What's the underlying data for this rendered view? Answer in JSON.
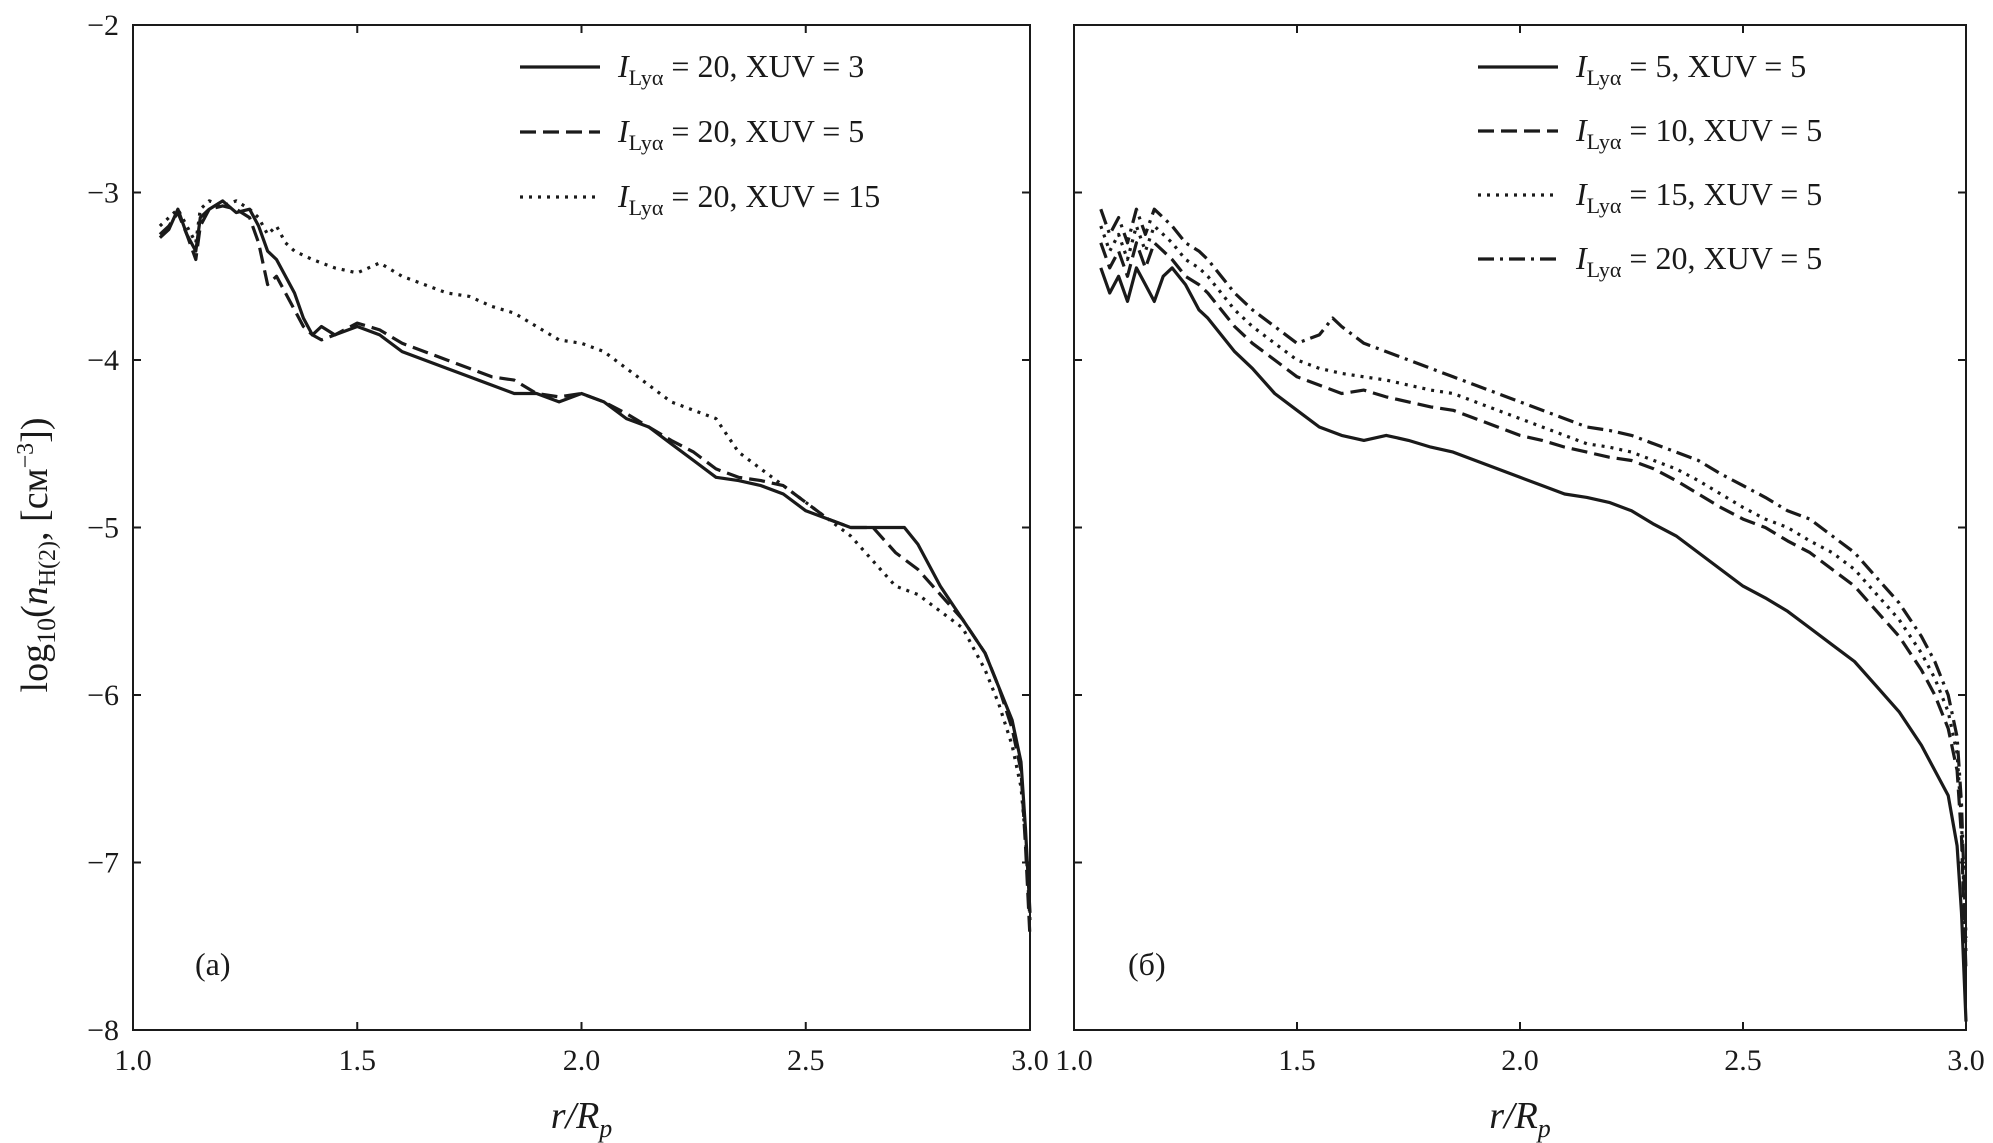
{
  "chart_data": [
    {
      "type": "line",
      "panel_label": "(a)",
      "xlabel": "r/R",
      "xlabel_sub": "p",
      "ylabel": "log",
      "ylabel_parts": {
        "base": "10",
        "open": "(",
        "var": "n",
        "var_sub": "H(2)",
        "unit_open": ", [см",
        "unit_sup": "−3",
        "unit_close": "])"
      },
      "xlim": [
        1.0,
        3.0
      ],
      "ylim": [
        -8,
        -2
      ],
      "xticks": [
        "1.0",
        "1.5",
        "2.0",
        "2.5",
        "3.0"
      ],
      "yticks": [
        "−2",
        "−3",
        "−4",
        "−5",
        "−6",
        "−7",
        "−8"
      ],
      "legend_position": "top-right",
      "series": [
        {
          "name": "I_Lyα = 20, XUV = 3",
          "legend": {
            "sym": "I",
            "sub": "Lyα",
            "rest": " = 20, XUV = 3"
          },
          "style": "solid",
          "x": [
            1.06,
            1.08,
            1.1,
            1.12,
            1.14,
            1.15,
            1.17,
            1.2,
            1.23,
            1.26,
            1.28,
            1.3,
            1.32,
            1.34,
            1.36,
            1.38,
            1.4,
            1.42,
            1.45,
            1.5,
            1.55,
            1.6,
            1.65,
            1.7,
            1.75,
            1.8,
            1.85,
            1.9,
            1.95,
            2.0,
            2.05,
            2.1,
            2.15,
            2.2,
            2.25,
            2.3,
            2.35,
            2.4,
            2.45,
            2.5,
            2.55,
            2.6,
            2.65,
            2.68,
            2.72,
            2.75,
            2.8,
            2.85,
            2.9,
            2.93,
            2.96,
            2.98,
            2.99,
            3.0
          ],
          "y": [
            -3.27,
            -3.22,
            -3.1,
            -3.25,
            -3.35,
            -3.15,
            -3.1,
            -3.05,
            -3.12,
            -3.1,
            -3.2,
            -3.35,
            -3.4,
            -3.5,
            -3.6,
            -3.75,
            -3.85,
            -3.8,
            -3.85,
            -3.8,
            -3.85,
            -3.95,
            -4.0,
            -4.05,
            -4.1,
            -4.15,
            -4.2,
            -4.2,
            -4.25,
            -4.2,
            -4.25,
            -4.35,
            -4.4,
            -4.5,
            -4.6,
            -4.7,
            -4.72,
            -4.75,
            -4.8,
            -4.9,
            -4.95,
            -5.0,
            -5.0,
            -5.0,
            -5.0,
            -5.1,
            -5.35,
            -5.55,
            -5.75,
            -5.95,
            -6.15,
            -6.4,
            -6.8,
            -7.3
          ]
        },
        {
          "name": "I_Lyα = 20, XUV = 5",
          "legend": {
            "sym": "I",
            "sub": "Lyα",
            "rest": " = 20, XUV = 5"
          },
          "style": "dashed",
          "x": [
            1.06,
            1.08,
            1.1,
            1.12,
            1.14,
            1.15,
            1.17,
            1.2,
            1.23,
            1.26,
            1.28,
            1.3,
            1.32,
            1.34,
            1.36,
            1.38,
            1.4,
            1.42,
            1.45,
            1.5,
            1.55,
            1.6,
            1.65,
            1.7,
            1.75,
            1.8,
            1.85,
            1.9,
            1.95,
            2.0,
            2.05,
            2.1,
            2.15,
            2.2,
            2.25,
            2.3,
            2.35,
            2.4,
            2.45,
            2.5,
            2.55,
            2.6,
            2.65,
            2.7,
            2.75,
            2.8,
            2.85,
            2.9,
            2.93,
            2.96,
            2.98,
            2.99,
            3.0
          ],
          "y": [
            -3.25,
            -3.2,
            -3.12,
            -3.25,
            -3.4,
            -3.2,
            -3.1,
            -3.08,
            -3.1,
            -3.15,
            -3.3,
            -3.55,
            -3.5,
            -3.6,
            -3.7,
            -3.8,
            -3.85,
            -3.88,
            -3.85,
            -3.78,
            -3.82,
            -3.9,
            -3.95,
            -4.0,
            -4.05,
            -4.1,
            -4.12,
            -4.2,
            -4.22,
            -4.2,
            -4.25,
            -4.32,
            -4.4,
            -4.48,
            -4.55,
            -4.65,
            -4.7,
            -4.72,
            -4.75,
            -4.85,
            -4.95,
            -5.0,
            -5.0,
            -5.15,
            -5.25,
            -5.4,
            -5.55,
            -5.75,
            -5.95,
            -6.2,
            -6.45,
            -6.9,
            -7.45
          ]
        },
        {
          "name": "I_Lyα = 20, XUV = 15",
          "legend": {
            "sym": "I",
            "sub": "Lyα",
            "rest": " = 20, XUV = 15"
          },
          "style": "dotted",
          "x": [
            1.06,
            1.08,
            1.1,
            1.12,
            1.14,
            1.15,
            1.17,
            1.2,
            1.23,
            1.26,
            1.28,
            1.3,
            1.32,
            1.34,
            1.36,
            1.4,
            1.45,
            1.5,
            1.55,
            1.6,
            1.65,
            1.7,
            1.75,
            1.8,
            1.85,
            1.9,
            1.95,
            2.0,
            2.05,
            2.1,
            2.15,
            2.2,
            2.25,
            2.3,
            2.35,
            2.4,
            2.45,
            2.5,
            2.55,
            2.6,
            2.65,
            2.7,
            2.75,
            2.8,
            2.85,
            2.9,
            2.93,
            2.96,
            2.98,
            2.99,
            3.0
          ],
          "y": [
            -3.2,
            -3.15,
            -3.1,
            -3.2,
            -3.3,
            -3.1,
            -3.05,
            -3.08,
            -3.05,
            -3.1,
            -3.15,
            -3.25,
            -3.2,
            -3.3,
            -3.35,
            -3.4,
            -3.45,
            -3.48,
            -3.42,
            -3.5,
            -3.55,
            -3.6,
            -3.62,
            -3.68,
            -3.72,
            -3.8,
            -3.88,
            -3.9,
            -3.95,
            -4.05,
            -4.15,
            -4.25,
            -4.3,
            -4.35,
            -4.55,
            -4.65,
            -4.75,
            -4.85,
            -4.95,
            -5.05,
            -5.2,
            -5.35,
            -5.4,
            -5.5,
            -5.6,
            -5.85,
            -6.05,
            -6.3,
            -6.55,
            -6.85,
            -7.35
          ]
        }
      ]
    },
    {
      "type": "line",
      "panel_label": "(б)",
      "xlabel": "r/R",
      "xlabel_sub": "p",
      "xlim": [
        1.0,
        3.0
      ],
      "ylim": [
        -8,
        -2
      ],
      "xticks": [
        "1.0",
        "1.5",
        "2.0",
        "2.5",
        "3.0"
      ],
      "legend_position": "top-right",
      "series": [
        {
          "name": "I_Lyα = 5, XUV = 5",
          "legend": {
            "sym": "I",
            "sub": "Lyα",
            "rest": " = 5, XUV = 5"
          },
          "style": "solid",
          "x": [
            1.06,
            1.08,
            1.1,
            1.12,
            1.14,
            1.16,
            1.18,
            1.2,
            1.22,
            1.25,
            1.28,
            1.3,
            1.33,
            1.36,
            1.4,
            1.45,
            1.5,
            1.55,
            1.6,
            1.65,
            1.7,
            1.75,
            1.8,
            1.85,
            1.9,
            1.95,
            2.0,
            2.05,
            2.1,
            2.15,
            2.2,
            2.25,
            2.3,
            2.35,
            2.4,
            2.45,
            2.5,
            2.55,
            2.6,
            2.65,
            2.7,
            2.75,
            2.8,
            2.85,
            2.9,
            2.93,
            2.96,
            2.98,
            2.99,
            3.0
          ],
          "y": [
            -3.45,
            -3.6,
            -3.5,
            -3.65,
            -3.45,
            -3.55,
            -3.65,
            -3.5,
            -3.45,
            -3.55,
            -3.7,
            -3.75,
            -3.85,
            -3.95,
            -4.05,
            -4.2,
            -4.3,
            -4.4,
            -4.45,
            -4.48,
            -4.45,
            -4.48,
            -4.52,
            -4.55,
            -4.6,
            -4.65,
            -4.7,
            -4.75,
            -4.8,
            -4.82,
            -4.85,
            -4.9,
            -4.98,
            -5.05,
            -5.15,
            -5.25,
            -5.35,
            -5.42,
            -5.5,
            -5.6,
            -5.7,
            -5.8,
            -5.95,
            -6.1,
            -6.3,
            -6.45,
            -6.6,
            -6.9,
            -7.3,
            -7.95
          ]
        },
        {
          "name": "I_Lyα = 10, XUV = 5",
          "legend": {
            "sym": "I",
            "sub": "Lyα",
            "rest": " = 10, XUV = 5"
          },
          "style": "dashed",
          "x": [
            1.06,
            1.08,
            1.1,
            1.12,
            1.14,
            1.16,
            1.18,
            1.2,
            1.22,
            1.25,
            1.28,
            1.3,
            1.33,
            1.36,
            1.4,
            1.45,
            1.5,
            1.55,
            1.6,
            1.65,
            1.7,
            1.75,
            1.8,
            1.85,
            1.9,
            1.95,
            2.0,
            2.05,
            2.1,
            2.15,
            2.2,
            2.25,
            2.3,
            2.35,
            2.4,
            2.45,
            2.5,
            2.55,
            2.6,
            2.65,
            2.7,
            2.75,
            2.8,
            2.85,
            2.9,
            2.93,
            2.96,
            2.98,
            2.99,
            3.0
          ],
          "y": [
            -3.3,
            -3.45,
            -3.35,
            -3.5,
            -3.3,
            -3.45,
            -3.3,
            -3.35,
            -3.4,
            -3.5,
            -3.55,
            -3.6,
            -3.7,
            -3.8,
            -3.9,
            -4.0,
            -4.1,
            -4.15,
            -4.2,
            -4.18,
            -4.22,
            -4.25,
            -4.28,
            -4.3,
            -4.35,
            -4.4,
            -4.45,
            -4.48,
            -4.52,
            -4.55,
            -4.58,
            -4.6,
            -4.65,
            -4.72,
            -4.8,
            -4.88,
            -4.95,
            -5.0,
            -5.08,
            -5.15,
            -5.25,
            -5.35,
            -5.5,
            -5.65,
            -5.85,
            -6.0,
            -6.2,
            -6.45,
            -6.85,
            -7.65
          ]
        },
        {
          "name": "I_Lyα = 15, XUV = 5",
          "legend": {
            "sym": "I",
            "sub": "Lyα",
            "rest": " = 15, XUV = 5"
          },
          "style": "dotted",
          "x": [
            1.06,
            1.08,
            1.1,
            1.12,
            1.14,
            1.16,
            1.18,
            1.2,
            1.22,
            1.25,
            1.28,
            1.3,
            1.33,
            1.36,
            1.4,
            1.45,
            1.5,
            1.55,
            1.6,
            1.65,
            1.7,
            1.75,
            1.8,
            1.85,
            1.9,
            1.95,
            2.0,
            2.05,
            2.1,
            2.15,
            2.2,
            2.25,
            2.3,
            2.35,
            2.4,
            2.45,
            2.5,
            2.55,
            2.6,
            2.65,
            2.7,
            2.75,
            2.8,
            2.85,
            2.9,
            2.93,
            2.96,
            2.98,
            2.99,
            3.0
          ],
          "y": [
            -3.2,
            -3.35,
            -3.25,
            -3.4,
            -3.2,
            -3.35,
            -3.2,
            -3.25,
            -3.3,
            -3.4,
            -3.45,
            -3.5,
            -3.6,
            -3.7,
            -3.8,
            -3.9,
            -4.0,
            -4.05,
            -4.08,
            -4.1,
            -4.12,
            -4.15,
            -4.18,
            -4.2,
            -4.25,
            -4.3,
            -4.35,
            -4.4,
            -4.45,
            -4.5,
            -4.52,
            -4.55,
            -4.6,
            -4.65,
            -4.72,
            -4.8,
            -4.88,
            -4.95,
            -5.0,
            -5.08,
            -5.15,
            -5.25,
            -5.4,
            -5.55,
            -5.75,
            -5.9,
            -6.1,
            -6.35,
            -6.75,
            -7.55
          ]
        },
        {
          "name": "I_Lyα = 20, XUV = 5",
          "legend": {
            "sym": "I",
            "sub": "Lyα",
            "rest": " = 20, XUV = 5"
          },
          "style": "dashdot",
          "x": [
            1.06,
            1.08,
            1.1,
            1.12,
            1.14,
            1.16,
            1.18,
            1.2,
            1.22,
            1.25,
            1.28,
            1.3,
            1.33,
            1.36,
            1.4,
            1.45,
            1.5,
            1.55,
            1.58,
            1.6,
            1.65,
            1.7,
            1.75,
            1.8,
            1.85,
            1.9,
            1.95,
            2.0,
            2.05,
            2.1,
            2.15,
            2.2,
            2.25,
            2.3,
            2.35,
            2.4,
            2.45,
            2.5,
            2.55,
            2.6,
            2.65,
            2.7,
            2.75,
            2.8,
            2.85,
            2.9,
            2.93,
            2.96,
            2.98,
            2.99,
            3.0
          ],
          "y": [
            -3.1,
            -3.25,
            -3.15,
            -3.3,
            -3.1,
            -3.25,
            -3.1,
            -3.15,
            -3.2,
            -3.3,
            -3.35,
            -3.4,
            -3.5,
            -3.6,
            -3.7,
            -3.8,
            -3.9,
            -3.85,
            -3.75,
            -3.8,
            -3.9,
            -3.95,
            -4.0,
            -4.05,
            -4.1,
            -4.15,
            -4.2,
            -4.25,
            -4.3,
            -4.35,
            -4.4,
            -4.42,
            -4.45,
            -4.5,
            -4.55,
            -4.6,
            -4.68,
            -4.75,
            -4.82,
            -4.9,
            -4.95,
            -5.05,
            -5.15,
            -5.3,
            -5.45,
            -5.65,
            -5.8,
            -6.0,
            -6.25,
            -6.65,
            -7.45
          ]
        }
      ]
    }
  ]
}
